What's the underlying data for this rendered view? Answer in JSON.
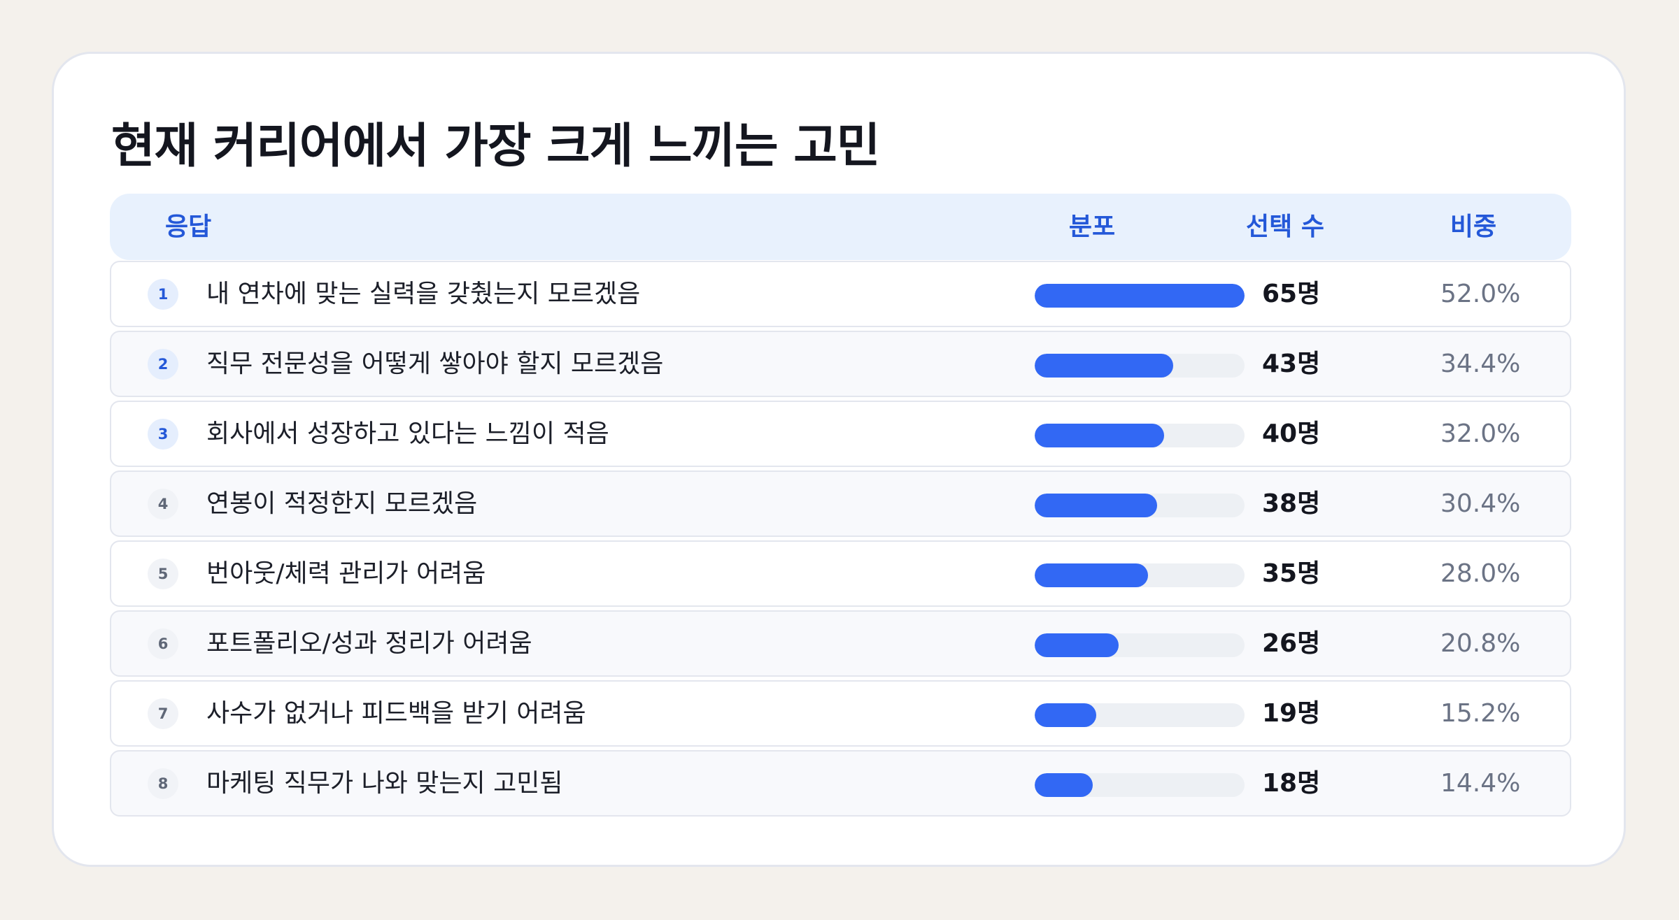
{
  "chart_data": {
    "type": "bar",
    "title": "현재 커리어에서 가장 크게 느끼는 고민",
    "columns": {
      "response": "응답",
      "distribution": "분포",
      "count": "선택 수",
      "share": "비중"
    },
    "rows": [
      {
        "rank": "1",
        "label": "내 연차에 맞는 실력을 갖췄는지 모르겠음",
        "value": 65,
        "count_text": "65명",
        "percent_text": "52.0%"
      },
      {
        "rank": "2",
        "label": "직무 전문성을 어떻게 쌓아야 할지 모르겠음",
        "value": 43,
        "count_text": "43명",
        "percent_text": "34.4%"
      },
      {
        "rank": "3",
        "label": "회사에서 성장하고 있다는 느낌이 적음",
        "value": 40,
        "count_text": "40명",
        "percent_text": "32.0%"
      },
      {
        "rank": "4",
        "label": "연봉이 적정한지 모르겠음",
        "value": 38,
        "count_text": "38명",
        "percent_text": "30.4%"
      },
      {
        "rank": "5",
        "label": "번아웃/체력 관리가 어려움",
        "value": 35,
        "count_text": "35명",
        "percent_text": "28.0%"
      },
      {
        "rank": "6",
        "label": "포트폴리오/성과 정리가 어려움",
        "value": 26,
        "count_text": "26명",
        "percent_text": "20.8%"
      },
      {
        "rank": "7",
        "label": "사수가 없거나 피드백을 받기 어려움",
        "value": 19,
        "count_text": "19명",
        "percent_text": "15.2%"
      },
      {
        "rank": "8",
        "label": "마케팅 직무가 나와 맞는지 고민됨",
        "value": 18,
        "count_text": "18명",
        "percent_text": "14.4%"
      }
    ],
    "max_value": 65,
    "colors": {
      "bar": "#3268f4",
      "track": "#edf0f4",
      "header_bg": "#e8f1fd",
      "header_text": "#2458d8"
    }
  }
}
